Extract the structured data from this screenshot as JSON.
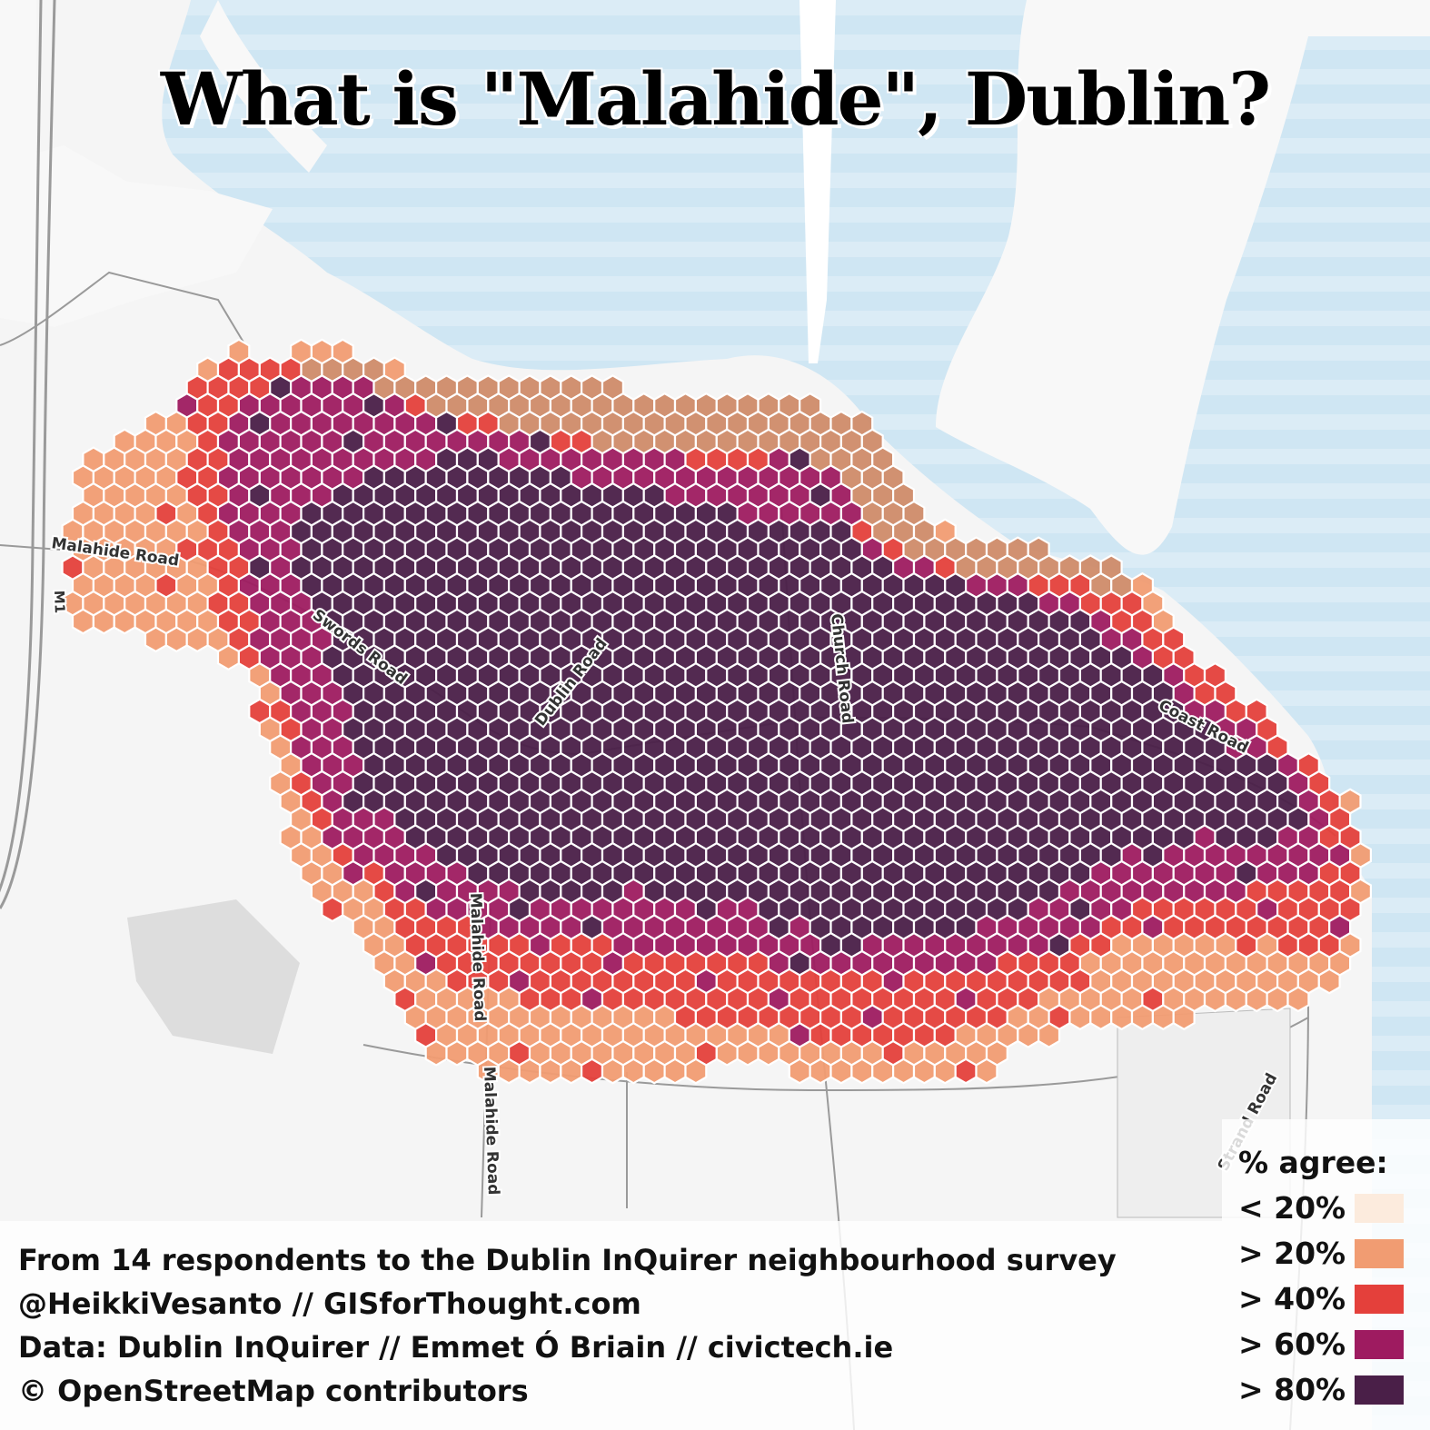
{
  "title": "What is \"Malahide\", Dublin?",
  "credits": {
    "line1": "From 14 respondents to the Dublin InQuirer neighbourhood survey",
    "line2": "@HeikkiVesanto // GISforThought.com",
    "line3": "Data: Dublin InQuirer // Emmet Ó Briain // civictech.ie",
    "line4": "© OpenStreetMap contributors"
  },
  "legend": {
    "title": "% agree:",
    "items": [
      {
        "label": "< 20%",
        "color": "#fcebdd"
      },
      {
        "label": "> 20%",
        "color": "#f19c72"
      },
      {
        "label": "> 40%",
        "color": "#e4403b"
      },
      {
        "label": "> 60%",
        "color": "#9e1b60"
      },
      {
        "label": "> 80%",
        "color": "#4a1f48"
      }
    ]
  },
  "road_labels": [
    "Malahide Road",
    "M1",
    "Swords Road",
    "Dublin Road",
    "Church Road",
    "Coast Road",
    "Malahide Road",
    "Malahide Road",
    "Strand Road"
  ],
  "colors": {
    "sea": "#cfe6f3",
    "land": "#f5f5f5",
    "land_mass": "#f8f8f8",
    "hex_stroke": "#ffffff",
    "tan_hex": "#cf8b69"
  }
}
